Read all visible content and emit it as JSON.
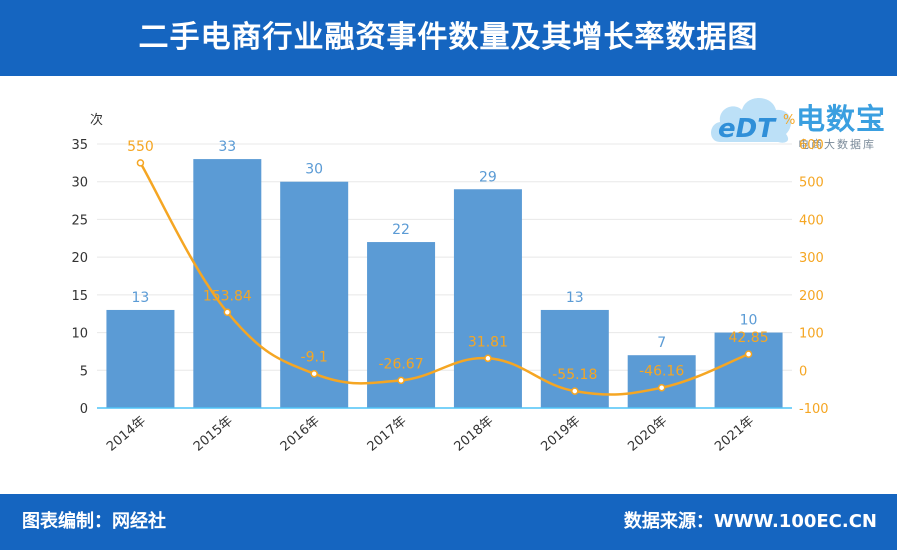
{
  "header": {
    "title": "二手电商行业融资事件数量及其增长率数据图"
  },
  "footer": {
    "left": "图表编制：网经社",
    "right": "数据来源：WWW.100EC.CN"
  },
  "logo": {
    "brand": "电数宝",
    "tagline": "电商大数据库",
    "mark": "eDT",
    "icon": "cloud-logo-icon"
  },
  "colors": {
    "header_bg": "#1565c0",
    "bar": "#5b9bd5",
    "line": "#f5a623",
    "bar_label": "#5b9bd5",
    "line_label": "#f5a623"
  },
  "chart_data": {
    "type": "bar",
    "categories": [
      "2014年",
      "2015年",
      "2016年",
      "2017年",
      "2018年",
      "2019年",
      "2020年",
      "2021年"
    ],
    "series": [
      {
        "type": "bar",
        "axis": "left",
        "values": [
          13,
          33,
          30,
          22,
          29,
          13,
          7,
          10
        ]
      },
      {
        "type": "line",
        "axis": "right",
        "values": [
          550,
          153.84,
          -9.1,
          -26.67,
          31.81,
          -55.18,
          -46.16,
          42.85
        ]
      }
    ],
    "y_left": {
      "unit": "次",
      "min": 0,
      "max": 35,
      "ticks": [
        0,
        5,
        10,
        15,
        20,
        25,
        30,
        35
      ]
    },
    "y_right": {
      "unit": "%",
      "min": -100,
      "max": 600,
      "ticks": [
        -100,
        0,
        100,
        200,
        300,
        400,
        500,
        600
      ]
    },
    "grid": true,
    "legend": "none"
  }
}
